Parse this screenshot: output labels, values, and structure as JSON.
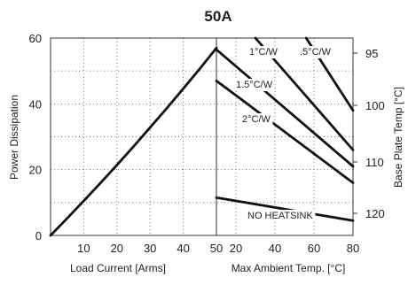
{
  "chart_data": {
    "type": "line",
    "title": "50A",
    "left_panel": {
      "xlabel": "Load Current  [Arms]",
      "ylabel": "Power Dissipation",
      "xlim": [
        0,
        50
      ],
      "ylim": [
        0,
        60
      ],
      "xticks": [
        "10",
        "20",
        "30",
        "40",
        "50"
      ],
      "yticks": [
        "0",
        "20",
        "40",
        "60"
      ],
      "series": [
        {
          "x": [
            0,
            5,
            10,
            15,
            20,
            25,
            30,
            35,
            40,
            45,
            50
          ],
          "y": [
            0,
            5.2,
            10.5,
            15.9,
            21.4,
            27.0,
            32.8,
            38.6,
            44.6,
            50.7,
            57.0
          ]
        }
      ]
    },
    "right_panel": {
      "xlabel": "Max Ambient Temp. [°C]",
      "ylabel": "Base Plate Temp [°C]",
      "xlim": [
        10,
        80
      ],
      "xticks": [
        "20",
        "40",
        "60",
        "80"
      ],
      "y2ticks": [
        "95",
        "100",
        "110",
        "120"
      ],
      "series": [
        {
          "name": "0.5°C/W",
          "label": ".5°C/W",
          "x": [
            56,
            80
          ],
          "y": [
            60,
            38
          ]
        },
        {
          "name": "1°C/W",
          "label": "1°C/W",
          "x": [
            30,
            80
          ],
          "y": [
            60,
            26
          ]
        },
        {
          "name": "1.5°C/W",
          "label": "1.5°C/W",
          "x": [
            10,
            80
          ],
          "y": [
            56.5,
            21
          ]
        },
        {
          "name": "2°C/W",
          "label": "2°C/W",
          "x": [
            10,
            80
          ],
          "y": [
            47,
            16
          ]
        },
        {
          "name": "NO HEATSINK",
          "label": "NO HEATSINK",
          "x": [
            10,
            80
          ],
          "y": [
            11.5,
            4.5
          ]
        }
      ]
    }
  }
}
